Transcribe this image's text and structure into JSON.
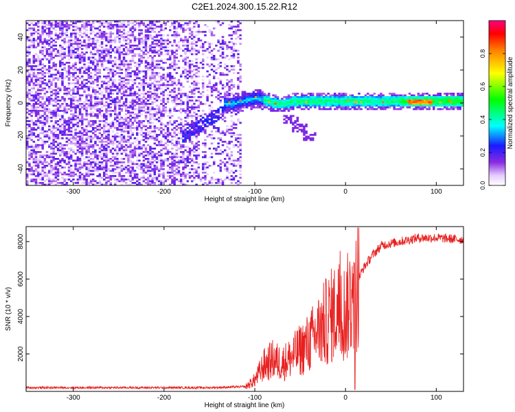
{
  "title": "C2E1.2024.300.15.22.R12",
  "chart_data": [
    {
      "type": "heatmap",
      "xlabel": "Height of straight line (km)",
      "ylabel": "Frequency (Hz)",
      "xlim": [
        -352,
        130
      ],
      "ylim": [
        -50,
        50
      ],
      "xticks": [
        -300,
        -200,
        -100,
        0,
        100
      ],
      "yticks": [
        -40,
        -20,
        0,
        20,
        40
      ],
      "colorbar": {
        "label": "Normalized spectral amplitude",
        "range": [
          0,
          1
        ],
        "ticks": [
          0.0,
          0.2,
          0.4,
          0.6,
          0.8
        ]
      },
      "features": {
        "noise_region_x": [
          -352,
          -115
        ],
        "signal_band_center_hz": 1,
        "signal_band_start_km": -135,
        "signal_peak_km": [
          70,
          95
        ],
        "branch_points": [
          [
            -75,
            -3
          ],
          [
            -60,
            -10
          ],
          [
            -50,
            -15
          ],
          [
            -40,
            -20
          ]
        ]
      }
    },
    {
      "type": "line",
      "xlabel": "Height of straight line (km)",
      "ylabel": "SNR (10 * v/v)",
      "xlim": [
        -352,
        130
      ],
      "ylim": [
        0,
        8800
      ],
      "xticks": [
        -300,
        -200,
        -100,
        0,
        100
      ],
      "yticks": [
        2000,
        4000,
        6000,
        8000
      ],
      "color": "#e8201f",
      "series": [
        {
          "x": [
            -352,
            -300,
            -250,
            -200,
            -150,
            -110,
            -100,
            -90,
            -80,
            -70,
            -60,
            -50,
            -40,
            -30,
            -20,
            -10,
            0,
            10,
            20,
            30,
            40,
            60,
            80,
            100,
            130
          ],
          "values": [
            200,
            200,
            200,
            200,
            200,
            250,
            600,
            1400,
            1700,
            1500,
            1800,
            2200,
            2600,
            3200,
            3800,
            4300,
            4200,
            5600,
            6600,
            7300,
            7800,
            8000,
            8200,
            8200,
            8100
          ]
        }
      ]
    }
  ]
}
